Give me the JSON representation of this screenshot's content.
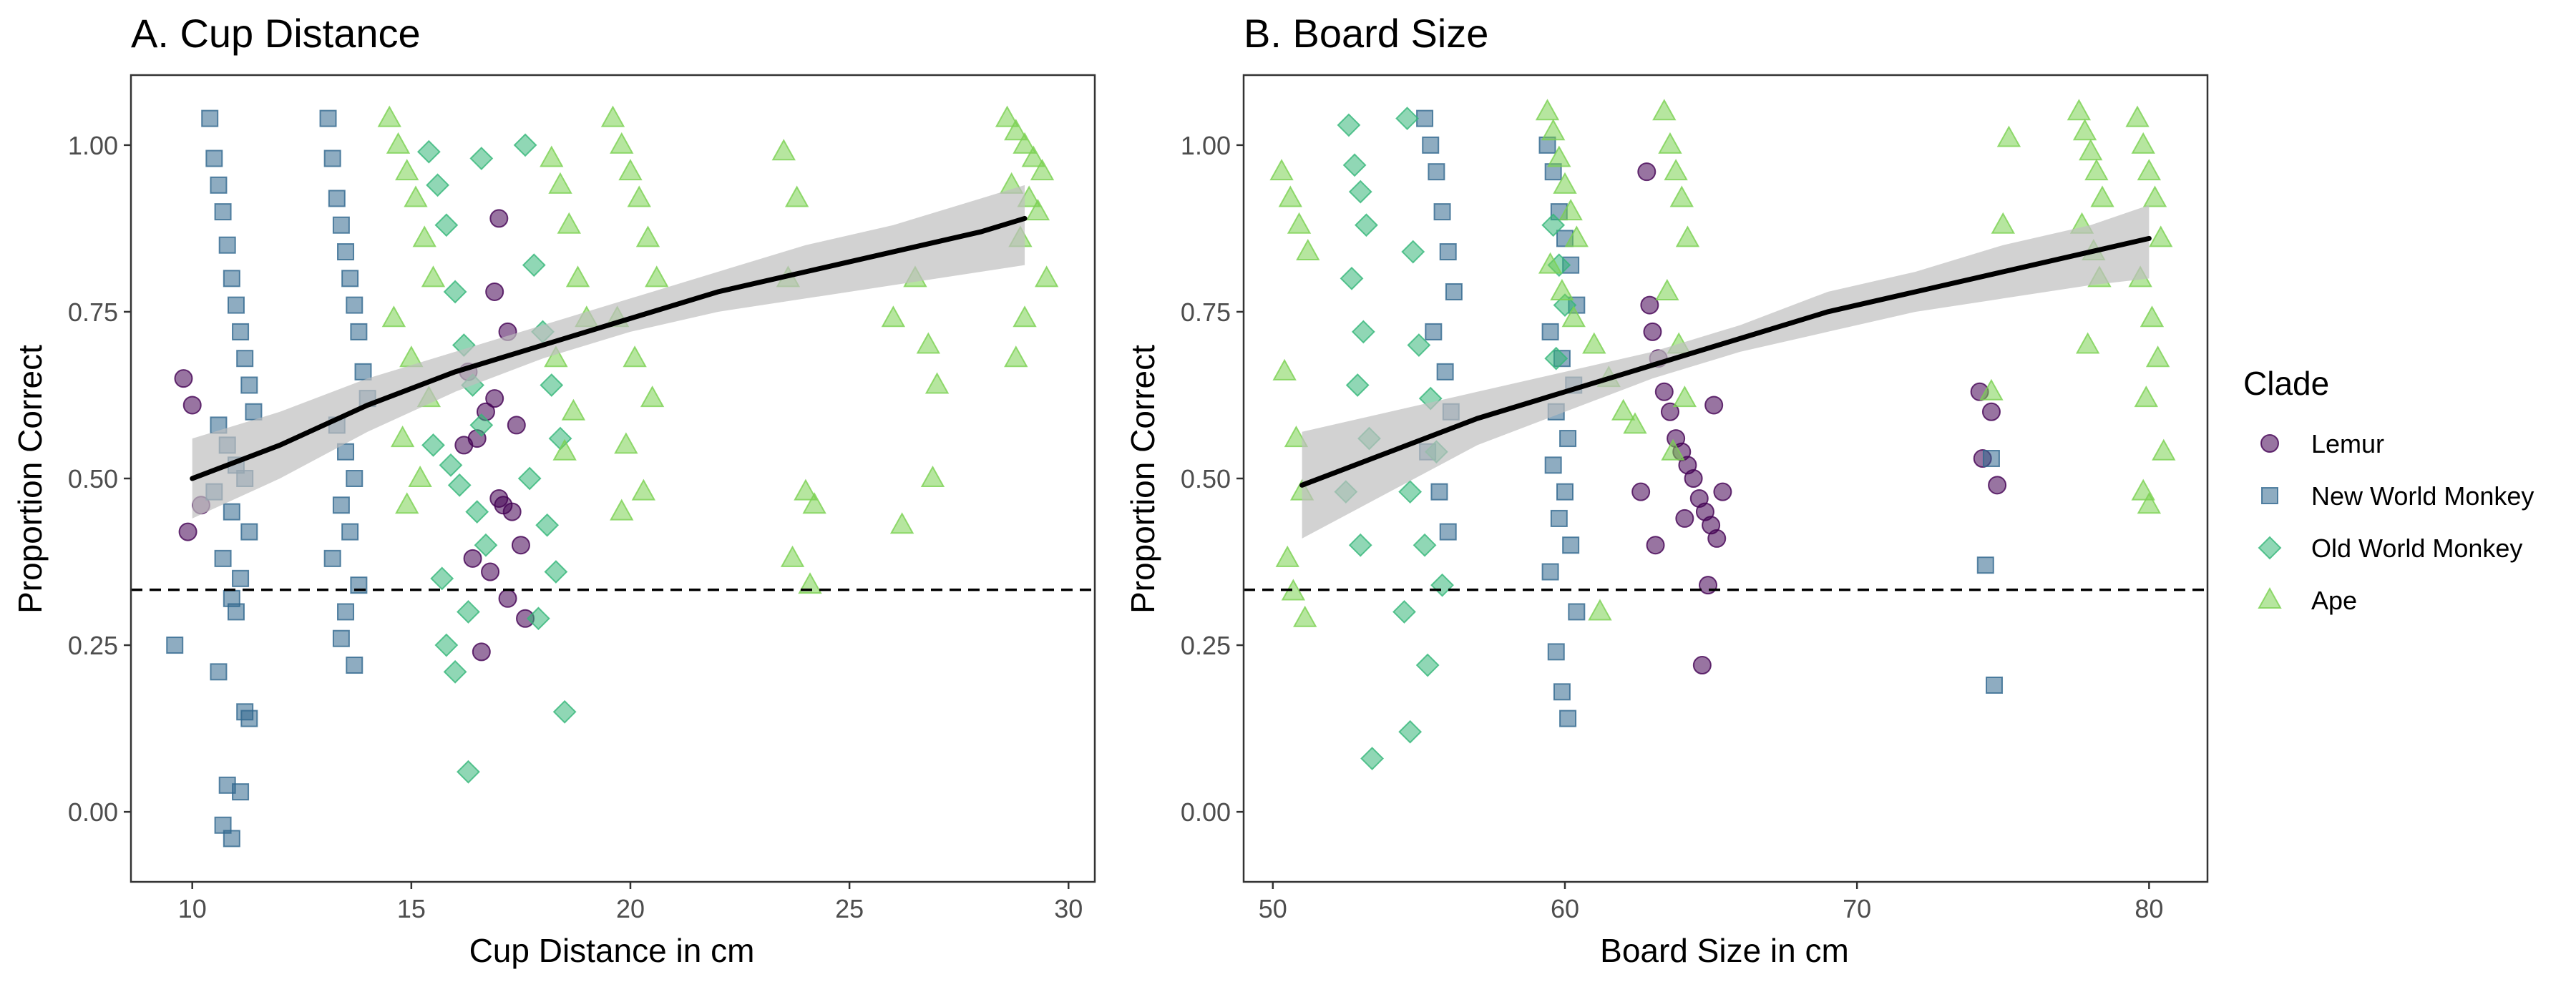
{
  "chart_data": [
    {
      "type": "scatter",
      "title": "A. Cup Distance",
      "xlabel": "Cup Distance in cm",
      "ylabel": "Proportion Correct",
      "xlim": [
        8.6,
        30.6
      ],
      "ylim": [
        -0.105,
        1.105
      ],
      "xticks": [
        10,
        15,
        20,
        25,
        30
      ],
      "xtick_labels": [
        "10",
        "15",
        "20",
        "25",
        "30"
      ],
      "yticks": [
        0,
        0.25,
        0.5,
        0.75,
        1.0
      ],
      "ytick_labels": [
        "0.00",
        "0.25",
        "0.50",
        "0.75",
        "1.00"
      ],
      "chance_line": 0.333,
      "fit_line": {
        "x": [
          10,
          12,
          14,
          16,
          18,
          20,
          22,
          24,
          26,
          28,
          29
        ],
        "y": [
          0.5,
          0.55,
          0.61,
          0.66,
          0.7,
          0.74,
          0.78,
          0.81,
          0.84,
          0.87,
          0.89
        ],
        "lower": [
          0.44,
          0.5,
          0.57,
          0.63,
          0.68,
          0.72,
          0.75,
          0.77,
          0.79,
          0.81,
          0.82
        ],
        "upper": [
          0.56,
          0.6,
          0.65,
          0.69,
          0.73,
          0.77,
          0.81,
          0.85,
          0.88,
          0.92,
          0.94
        ]
      },
      "series": [
        {
          "name": "Lemur",
          "x": [
            9.8,
            10.0,
            9.9,
            10.2,
            16.2,
            16.5,
            16.7,
            16.9,
            17.0,
            17.1,
            17.3,
            17.4,
            17.5,
            16.4,
            16.8,
            17.2,
            16.6,
            17.6,
            16.3,
            17.0,
            16.9,
            17.2
          ],
          "y": [
            0.65,
            0.61,
            0.42,
            0.46,
            0.55,
            0.56,
            0.6,
            0.62,
            0.47,
            0.46,
            0.45,
            0.58,
            0.4,
            0.38,
            0.36,
            0.32,
            0.24,
            0.29,
            0.66,
            0.89,
            0.78,
            0.72
          ]
        },
        {
          "name": "New World Monkey",
          "x": [
            9.6,
            10.4,
            10.5,
            10.6,
            10.7,
            10.8,
            10.9,
            11.0,
            11.1,
            11.2,
            11.3,
            11.4,
            10.6,
            10.8,
            11.0,
            11.2,
            10.5,
            10.9,
            11.3,
            10.7,
            11.1,
            10.9,
            11.0,
            10.6,
            11.2,
            11.3,
            10.8,
            11.1,
            10.7,
            10.9,
            13.1,
            13.2,
            13.3,
            13.4,
            13.5,
            13.6,
            13.7,
            13.8,
            13.9,
            14.0,
            13.3,
            13.5,
            13.7,
            13.4,
            13.6,
            13.2,
            13.8,
            13.5,
            13.4,
            13.7
          ],
          "y": [
            0.25,
            1.04,
            0.98,
            0.94,
            0.9,
            0.85,
            0.8,
            0.76,
            0.72,
            0.68,
            0.64,
            0.6,
            0.58,
            0.55,
            0.52,
            0.5,
            0.48,
            0.45,
            0.42,
            0.38,
            0.35,
            0.32,
            0.3,
            0.21,
            0.15,
            0.14,
            0.04,
            0.03,
            -0.02,
            -0.04,
            1.04,
            0.98,
            0.92,
            0.88,
            0.84,
            0.8,
            0.76,
            0.72,
            0.66,
            0.62,
            0.58,
            0.54,
            0.5,
            0.46,
            0.42,
            0.38,
            0.34,
            0.3,
            0.26,
            0.22
          ]
        },
        {
          "name": "Old World Monkey",
          "x": [
            15.4,
            15.6,
            15.8,
            16.0,
            16.2,
            16.4,
            16.6,
            15.5,
            15.9,
            16.1,
            16.5,
            16.7,
            15.7,
            16.3,
            17.6,
            17.8,
            18.0,
            18.2,
            18.4,
            17.7,
            18.1,
            18.3,
            16.3,
            16.0,
            15.8,
            17.9,
            18.5,
            16.6
          ],
          "y": [
            0.99,
            0.94,
            0.88,
            0.78,
            0.7,
            0.64,
            0.58,
            0.55,
            0.52,
            0.49,
            0.45,
            0.4,
            0.35,
            0.3,
            1.0,
            0.82,
            0.72,
            0.64,
            0.56,
            0.5,
            0.43,
            0.36,
            0.06,
            0.21,
            0.25,
            0.29,
            0.15,
            0.98
          ]
        },
        {
          "name": "Ape",
          "x": [
            14.5,
            14.7,
            14.9,
            15.1,
            15.3,
            15.5,
            14.6,
            15.0,
            15.4,
            14.8,
            15.2,
            14.9,
            18.2,
            18.4,
            18.6,
            18.8,
            19.0,
            18.3,
            18.7,
            18.5,
            19.6,
            19.8,
            20.0,
            20.2,
            20.4,
            20.6,
            19.7,
            20.1,
            20.5,
            19.9,
            20.3,
            19.8,
            23.5,
            23.8,
            23.6,
            24.0,
            24.2,
            26.0,
            26.5,
            26.8,
            27.0,
            23.7,
            24.1,
            26.2,
            26.9,
            28.6,
            28.8,
            29.0,
            29.2,
            29.4,
            28.7,
            29.1,
            29.3,
            28.9,
            29.5,
            28.8,
            29.0
          ],
          "y": [
            1.04,
            1.0,
            0.96,
            0.92,
            0.86,
            0.8,
            0.74,
            0.68,
            0.62,
            0.56,
            0.5,
            0.46,
            0.98,
            0.94,
            0.88,
            0.8,
            0.74,
            0.68,
            0.6,
            0.54,
            1.04,
            1.0,
            0.96,
            0.92,
            0.86,
            0.8,
            0.74,
            0.68,
            0.62,
            0.55,
            0.48,
            0.45,
            0.99,
            0.92,
            0.8,
            0.48,
            0.46,
            0.74,
            0.8,
            0.7,
            0.64,
            0.38,
            0.34,
            0.43,
            0.5,
            1.04,
            1.02,
            1.0,
            0.98,
            0.96,
            0.94,
            0.92,
            0.9,
            0.86,
            0.8,
            0.68,
            0.74
          ]
        }
      ]
    },
    {
      "type": "scatter",
      "title": "B. Board Size",
      "xlabel": "Board Size in cm",
      "ylabel": "Proportion Correct",
      "xlim": [
        49.0,
        82.0
      ],
      "ylim": [
        -0.105,
        1.105
      ],
      "xticks": [
        50,
        60,
        70,
        80
      ],
      "xtick_labels": [
        "50",
        "60",
        "70",
        "80"
      ],
      "yticks": [
        0,
        0.25,
        0.5,
        0.75,
        1.0
      ],
      "ytick_labels": [
        "0.00",
        "0.25",
        "0.50",
        "0.75",
        "1.00"
      ],
      "chance_line": 0.333,
      "fit_line": {
        "x": [
          51,
          54,
          57,
          60,
          63,
          66,
          69,
          72,
          75,
          78,
          80
        ],
        "y": [
          0.49,
          0.54,
          0.59,
          0.63,
          0.67,
          0.71,
          0.75,
          0.78,
          0.81,
          0.84,
          0.86
        ],
        "lower": [
          0.41,
          0.48,
          0.55,
          0.6,
          0.65,
          0.69,
          0.72,
          0.75,
          0.77,
          0.79,
          0.8
        ],
        "upper": [
          0.57,
          0.6,
          0.63,
          0.66,
          0.69,
          0.73,
          0.78,
          0.81,
          0.85,
          0.88,
          0.91
        ]
      },
      "series": [
        {
          "name": "Lemur",
          "x": [
            62.8,
            62.9,
            63.0,
            63.2,
            63.4,
            63.6,
            63.8,
            64.0,
            64.2,
            64.4,
            64.6,
            64.8,
            65.0,
            65.2,
            65.4,
            62.6,
            63.1,
            64.1,
            64.9,
            74.2,
            74.3,
            74.6,
            74.8,
            65.1,
            64.7
          ],
          "y": [
            0.96,
            0.76,
            0.72,
            0.68,
            0.63,
            0.6,
            0.56,
            0.54,
            0.52,
            0.5,
            0.47,
            0.45,
            0.43,
            0.41,
            0.48,
            0.48,
            0.4,
            0.44,
            0.34,
            0.63,
            0.53,
            0.6,
            0.49,
            0.61,
            0.22
          ]
        },
        {
          "name": "New World Monkey",
          "x": [
            55.2,
            55.4,
            55.6,
            55.8,
            56.0,
            56.2,
            55.5,
            55.9,
            56.1,
            55.3,
            55.7,
            56.0,
            59.4,
            59.6,
            59.8,
            60.0,
            60.2,
            60.4,
            59.5,
            59.9,
            60.3,
            59.7,
            60.1,
            59.6,
            60.0,
            59.8,
            60.2,
            59.5,
            60.4,
            59.7,
            59.9,
            60.1,
            74.4,
            74.6,
            74.7
          ],
          "y": [
            1.04,
            1.0,
            0.96,
            0.9,
            0.84,
            0.78,
            0.72,
            0.66,
            0.6,
            0.54,
            0.48,
            0.42,
            1.0,
            0.96,
            0.9,
            0.86,
            0.82,
            0.76,
            0.72,
            0.68,
            0.64,
            0.6,
            0.56,
            0.52,
            0.48,
            0.44,
            0.4,
            0.36,
            0.3,
            0.24,
            0.18,
            0.14,
            0.37,
            0.53,
            0.19
          ]
        },
        {
          "name": "Old World Monkey",
          "x": [
            52.6,
            52.8,
            53.0,
            53.2,
            52.7,
            53.1,
            52.9,
            53.3,
            52.5,
            53.0,
            54.6,
            54.8,
            55.0,
            55.4,
            55.6,
            54.7,
            55.2,
            55.8,
            54.5,
            55.3,
            59.6,
            59.8,
            60.0,
            59.7,
            53.4,
            54.7
          ],
          "y": [
            1.03,
            0.97,
            0.93,
            0.88,
            0.8,
            0.72,
            0.64,
            0.56,
            0.48,
            0.4,
            1.04,
            0.84,
            0.7,
            0.62,
            0.54,
            0.48,
            0.4,
            0.34,
            0.3,
            0.22,
            0.88,
            0.82,
            0.76,
            0.68,
            0.08,
            0.12
          ]
        },
        {
          "name": "Ape",
          "x": [
            50.3,
            50.6,
            50.9,
            51.2,
            50.4,
            50.8,
            51.0,
            50.5,
            50.7,
            51.1,
            59.4,
            59.6,
            59.8,
            60.0,
            60.2,
            60.4,
            59.5,
            59.9,
            60.3,
            61.0,
            61.5,
            62.0,
            61.2,
            62.4,
            63.4,
            63.6,
            63.8,
            64.0,
            64.2,
            63.5,
            63.9,
            64.1,
            63.7,
            74.6,
            75.0,
            75.2,
            77.6,
            77.8,
            78.0,
            78.2,
            78.4,
            77.7,
            78.1,
            78.3,
            77.9,
            79.6,
            79.8,
            80.0,
            80.2,
            80.4,
            79.7,
            80.1,
            80.3,
            79.9,
            80.5,
            79.8,
            80.0
          ],
          "y": [
            0.96,
            0.92,
            0.88,
            0.84,
            0.66,
            0.56,
            0.48,
            0.38,
            0.33,
            0.29,
            1.05,
            1.02,
            0.98,
            0.94,
            0.9,
            0.86,
            0.82,
            0.78,
            0.74,
            0.7,
            0.65,
            0.6,
            0.3,
            0.58,
            1.05,
            1.0,
            0.96,
            0.92,
            0.86,
            0.78,
            0.7,
            0.62,
            0.54,
            0.63,
            0.88,
            1.01,
            1.05,
            1.02,
            0.99,
            0.96,
            0.92,
            0.88,
            0.84,
            0.8,
            0.7,
            1.04,
            1.0,
            0.96,
            0.92,
            0.86,
            0.8,
            0.74,
            0.68,
            0.62,
            0.54,
            0.48,
            0.46
          ]
        }
      ]
    }
  ],
  "legend": {
    "title": "Clade",
    "placement": "right",
    "items": [
      {
        "label": "Lemur",
        "shape": "circle",
        "color": "#440154"
      },
      {
        "label": "New World Monkey",
        "shape": "square",
        "color": "#31688e"
      },
      {
        "label": "Old World Monkey",
        "shape": "diamond",
        "color": "#35b779"
      },
      {
        "label": "Ape",
        "shape": "triangle",
        "color": "#7ad151"
      }
    ]
  },
  "colors": {
    "fit_line": "#000000",
    "ci_band": "#bfbfbf",
    "panel_border": "#333333",
    "tick_text": "#4d4d4d"
  }
}
